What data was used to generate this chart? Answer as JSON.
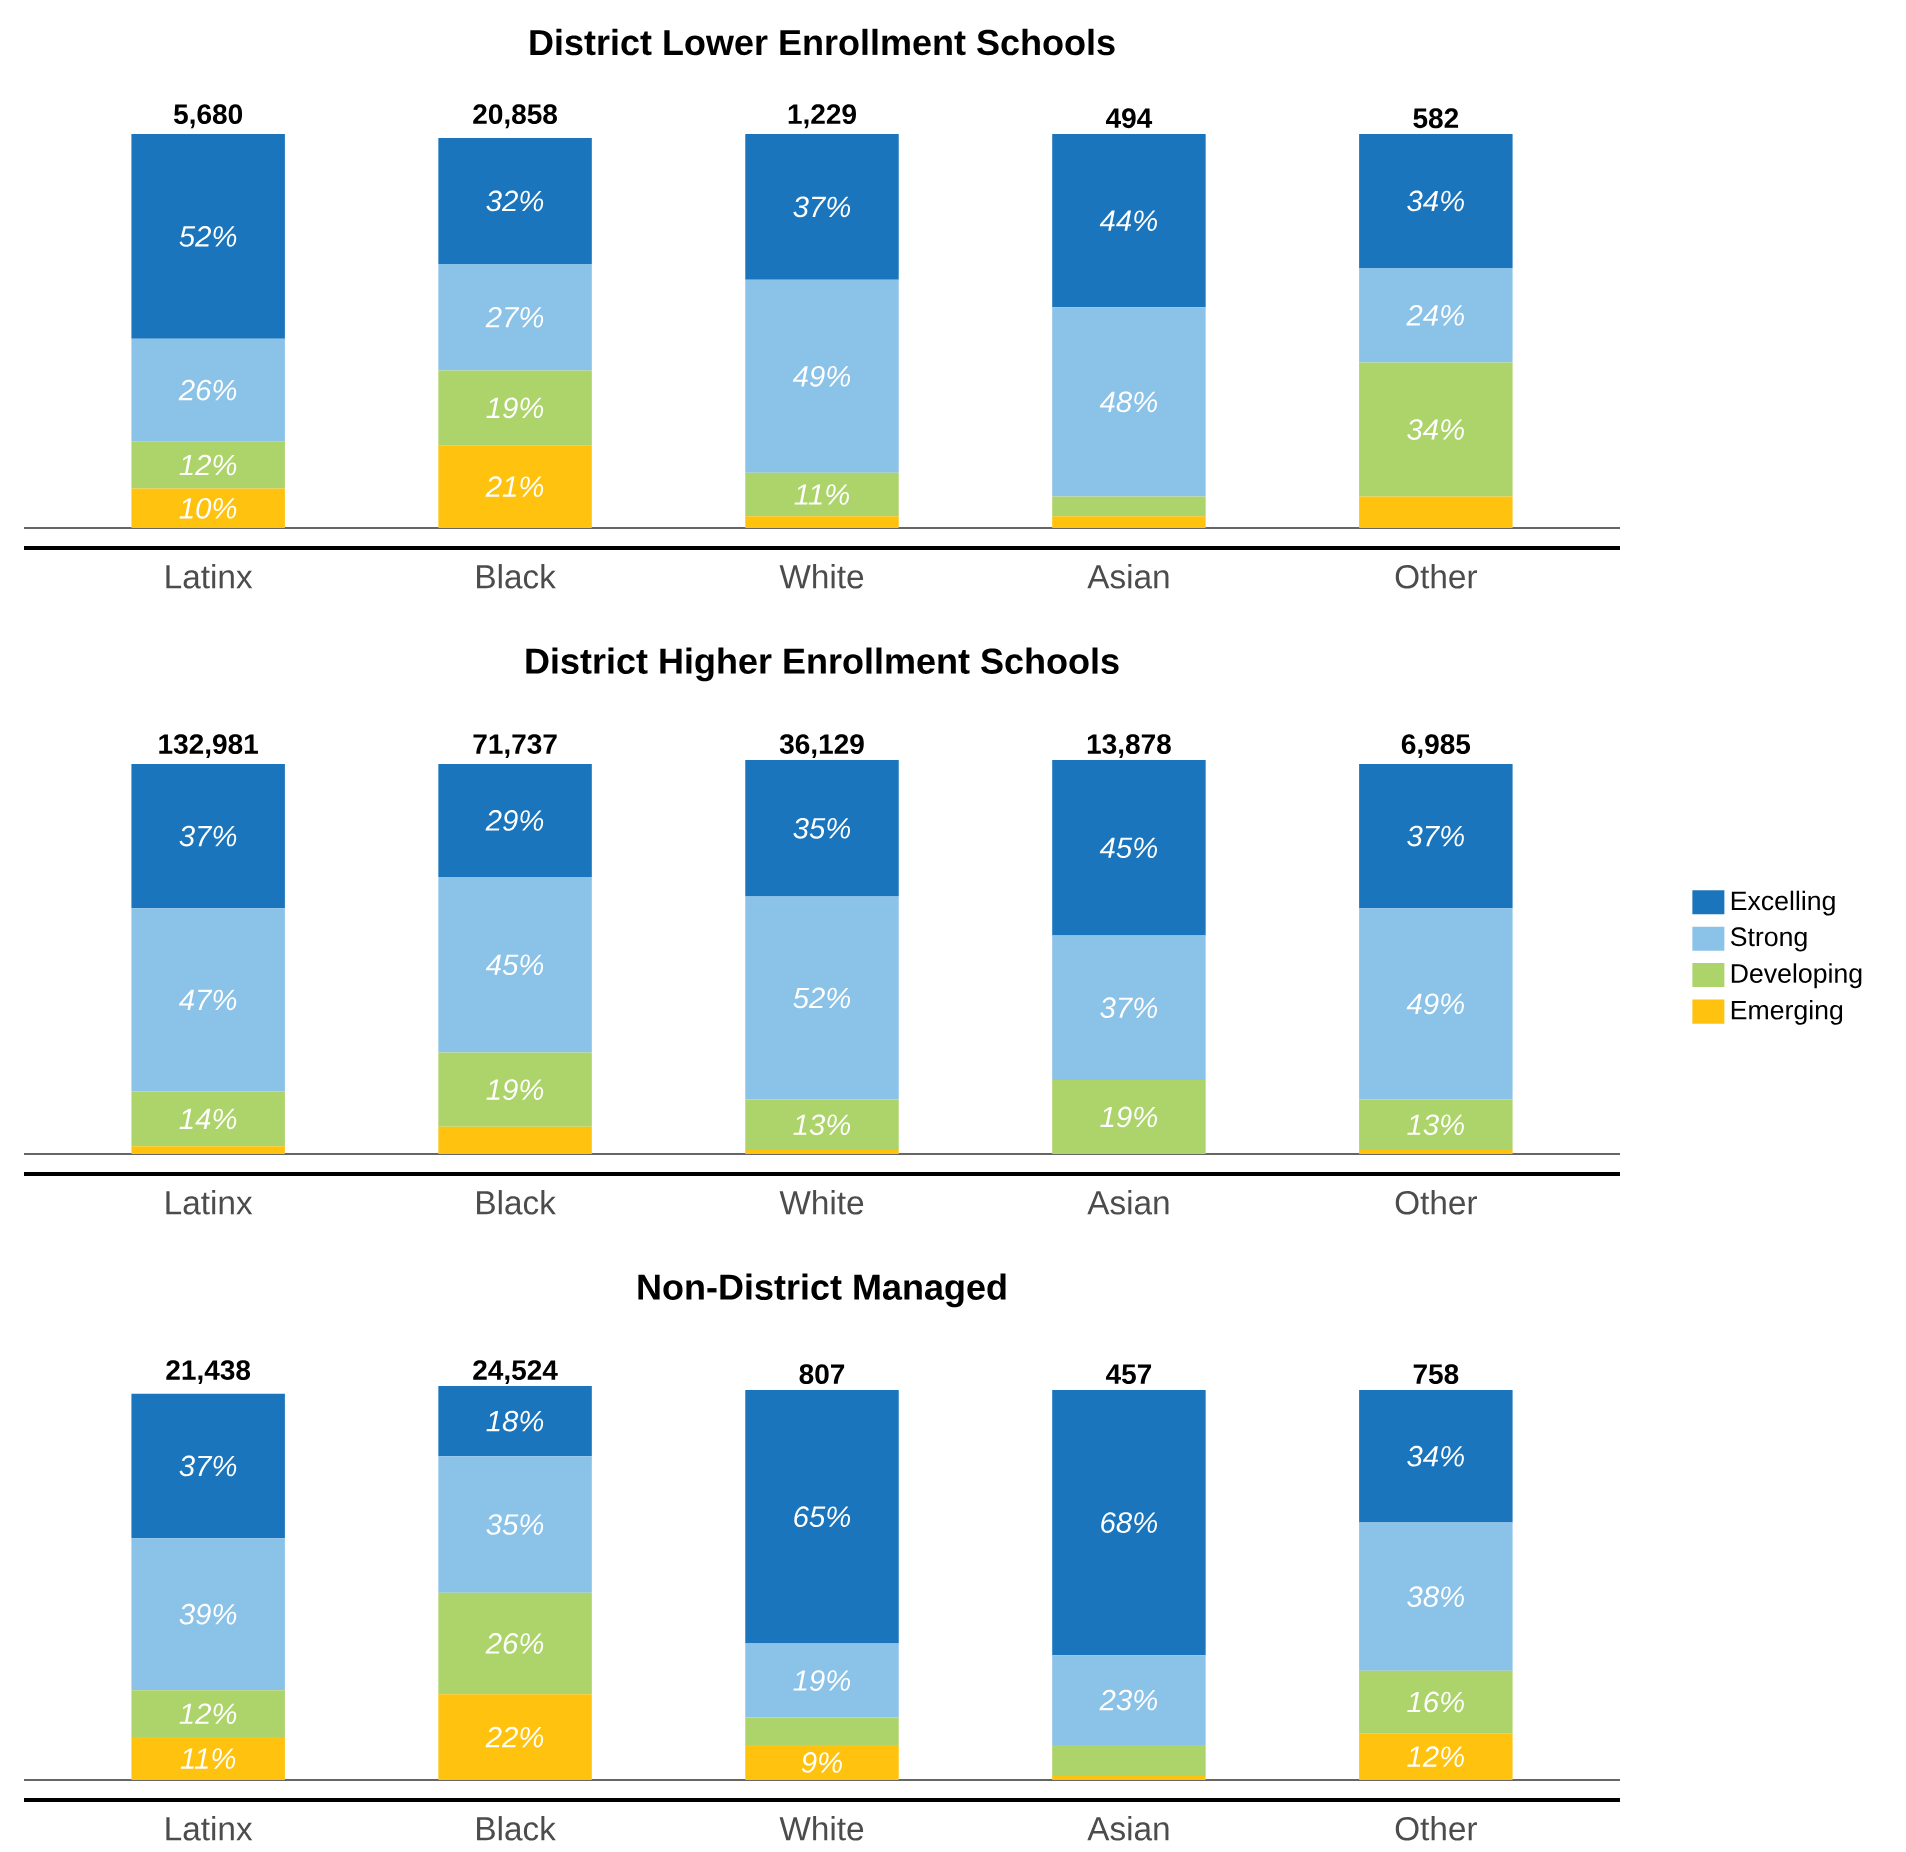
{
  "chart_data": [
    {
      "type": "bar",
      "stacked": true,
      "title": "District Lower Enrollment Schools",
      "categories": [
        "Latinx",
        "Black",
        "White",
        "Asian",
        "Other"
      ],
      "legend": false,
      "annotations": [
        {
          "text": "5,680",
          "x": "Latinx",
          "y": 100
        },
        {
          "text": "20,858",
          "x": "Black",
          "y": 100
        },
        {
          "text": "1,229",
          "x": "White",
          "y": 100
        },
        {
          "text": "494",
          "x": "Asian",
          "y": 100
        },
        {
          "text": "582",
          "x": "Other",
          "y": 100
        }
      ],
      "series": [
        {
          "color": "#ffc20e",
          "values": [
            10,
            21,
            3,
            3,
            8
          ],
          "value_labels": [
            "10%",
            "21%",
            null,
            null,
            null
          ]
        },
        {
          "color": "#acd46a",
          "values": [
            12,
            19,
            11,
            5,
            34
          ],
          "value_labels": [
            "12%",
            "19%",
            "11%",
            null,
            "34%"
          ]
        },
        {
          "color": "#8bc2e8",
          "values": [
            26,
            27,
            49,
            48,
            24
          ],
          "value_labels": [
            "26%",
            "27%",
            "49%",
            "48%",
            "24%"
          ]
        },
        {
          "color": "#1a75bc",
          "values": [
            52,
            32,
            37,
            44,
            34
          ],
          "value_labels": [
            "52%",
            "32%",
            "37%",
            "44%",
            "34%"
          ]
        }
      ]
    },
    {
      "type": "bar",
      "stacked": true,
      "title": "District Higher Enrollment Schools",
      "categories": [
        "Latinx",
        "Black",
        "White",
        "Asian",
        "Other"
      ],
      "legend": "right",
      "annotations": [
        {
          "text": "132,981",
          "x": "Latinx",
          "y": 100
        },
        {
          "text": "71,737",
          "x": "Black",
          "y": 100
        },
        {
          "text": "36,129",
          "x": "White",
          "y": 100
        },
        {
          "text": "13,878",
          "x": "Asian",
          "y": 100
        },
        {
          "text": "6,985",
          "x": "Other",
          "y": 100
        }
      ],
      "series": [
        {
          "name": "Emerging",
          "color": "#ffc20e",
          "values": [
            2,
            7,
            1,
            0,
            1
          ],
          "value_labels": [
            null,
            null,
            null,
            null,
            null
          ]
        },
        {
          "name": "Developing",
          "color": "#acd46a",
          "values": [
            14,
            19,
            13,
            19,
            13
          ],
          "value_labels": [
            "14%",
            "19%",
            "13%",
            "19%",
            "13%"
          ]
        },
        {
          "name": "Strong",
          "color": "#8bc2e8",
          "values": [
            47,
            45,
            52,
            37,
            49
          ],
          "value_labels": [
            "47%",
            "45%",
            "52%",
            "37%",
            "49%"
          ]
        },
        {
          "name": "Excelling",
          "color": "#1a75bc",
          "values": [
            37,
            29,
            35,
            45,
            37
          ],
          "value_labels": [
            "37%",
            "29%",
            "35%",
            "45%",
            "37%"
          ]
        }
      ]
    },
    {
      "type": "bar",
      "stacked": true,
      "title": "Non-District Managed",
      "categories": [
        "Latinx",
        "Black",
        "White",
        "Asian",
        "Other"
      ],
      "legend": false,
      "annotations": [
        {
          "text": "21,438",
          "x": "Latinx",
          "y": 100
        },
        {
          "text": "24,524",
          "x": "Black",
          "y": 100
        },
        {
          "text": "807",
          "x": "White",
          "y": 100
        },
        {
          "text": "457",
          "x": "Asian",
          "y": 100
        },
        {
          "text": "758",
          "x": "Other",
          "y": 100
        }
      ],
      "series": [
        {
          "color": "#ffc20e",
          "values": [
            11,
            22,
            9,
            1,
            12
          ],
          "value_labels": [
            "11%",
            "22%",
            "9%",
            null,
            "12%"
          ]
        },
        {
          "color": "#acd46a",
          "values": [
            12,
            26,
            7,
            8,
            16
          ],
          "value_labels": [
            "12%",
            "26%",
            null,
            null,
            "16%"
          ]
        },
        {
          "color": "#8bc2e8",
          "values": [
            39,
            35,
            19,
            23,
            38
          ],
          "value_labels": [
            "39%",
            "35%",
            "19%",
            "23%",
            "38%"
          ]
        },
        {
          "color": "#1a75bc",
          "values": [
            37,
            18,
            65,
            68,
            34
          ],
          "value_labels": [
            "37%",
            "18%",
            "65%",
            "68%",
            "34%"
          ]
        }
      ]
    }
  ]
}
